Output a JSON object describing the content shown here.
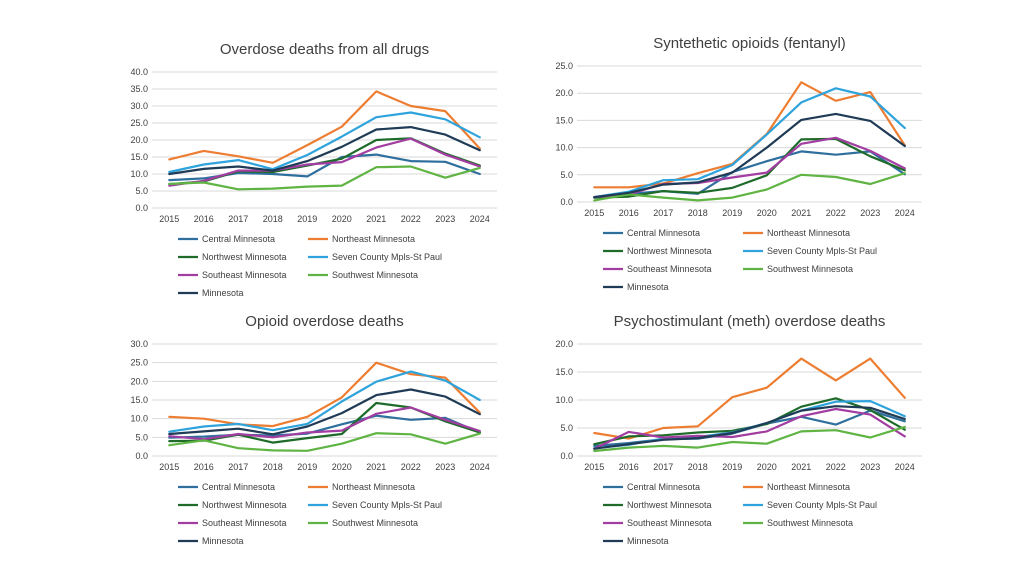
{
  "colors": {
    "Central Minnesota": "#2f6f9e",
    "Northeast Minnesota": "#ed7d31",
    "Northwest Minnesota": "#1e6b2a",
    "Seven County Mpls-St Paul": "#2ea3dc",
    "Southeast Minnesota": "#a23da1",
    "Southwest Minnesota": "#5fb443",
    "Minnesota": "#1f3b55"
  },
  "chart_data": [
    {
      "id": "all-drugs",
      "type": "line",
      "title": "Overdose deaths from all drugs",
      "categories": [
        "2015",
        "2016",
        "2017",
        "2018",
        "2019",
        "2020",
        "2021",
        "2022",
        "2023",
        "2024"
      ],
      "ylim": [
        0,
        40
      ],
      "yticks": [
        "0.0",
        "5.0",
        "10.0",
        "15.0",
        "20.0",
        "25.0",
        "30.0",
        "35.0",
        "40.0"
      ],
      "grid": true,
      "legend": "bottom",
      "series": [
        {
          "name": "Central Minnesota",
          "values": [
            8.2,
            8.7,
            10.3,
            10.0,
            9.3,
            15.0,
            15.7,
            13.8,
            13.6,
            10.0
          ]
        },
        {
          "name": "Northeast Minnesota",
          "values": [
            14.3,
            16.8,
            15.2,
            13.3,
            18.5,
            23.9,
            34.3,
            30.0,
            28.5,
            17.5
          ]
        },
        {
          "name": "Northwest Minnesota",
          "values": [
            7.0,
            7.8,
            10.8,
            10.6,
            12.5,
            14.5,
            20.0,
            20.5,
            16.0,
            12.5
          ]
        },
        {
          "name": "Seven County Mpls-St Paul",
          "values": [
            10.6,
            12.8,
            14.1,
            11.4,
            15.6,
            21.0,
            26.7,
            28.1,
            26.1,
            20.8
          ]
        },
        {
          "name": "Southeast Minnesota",
          "values": [
            6.6,
            8.0,
            11.0,
            11.0,
            12.8,
            13.5,
            17.8,
            20.4,
            15.7,
            12.2
          ]
        },
        {
          "name": "Southwest Minnesota",
          "values": [
            7.1,
            7.5,
            5.5,
            5.7,
            6.3,
            6.6,
            12.0,
            12.2,
            8.9,
            11.8
          ]
        },
        {
          "name": "Minnesota",
          "values": [
            10.0,
            11.5,
            12.2,
            11.0,
            13.8,
            18.0,
            23.1,
            23.8,
            21.6,
            17.0
          ]
        }
      ]
    },
    {
      "id": "fentanyl",
      "type": "line",
      "title": "Syntethetic opioids (fentanyl)",
      "categories": [
        "2015",
        "2016",
        "2017",
        "2018",
        "2019",
        "2020",
        "2021",
        "2022",
        "2023",
        "2024"
      ],
      "ylim": [
        0,
        25
      ],
      "yticks": [
        "0.0",
        "5.0",
        "10.0",
        "15.0",
        "20.0",
        "25.0"
      ],
      "grid": true,
      "legend": "bottom",
      "series": [
        {
          "name": "Central Minnesota",
          "values": [
            0.8,
            1.5,
            2.0,
            1.5,
            5.5,
            7.5,
            9.3,
            8.7,
            9.3,
            5.1
          ]
        },
        {
          "name": "Northeast Minnesota",
          "values": [
            2.7,
            2.7,
            3.4,
            5.3,
            7.0,
            12.5,
            22.0,
            18.6,
            20.2,
            10.4
          ]
        },
        {
          "name": "Northwest Minnesota",
          "values": [
            0.8,
            1.0,
            2.0,
            1.7,
            2.6,
            4.9,
            11.5,
            11.6,
            8.4,
            5.8
          ]
        },
        {
          "name": "Seven County Mpls-St Paul",
          "values": [
            0.9,
            1.9,
            4.0,
            4.2,
            6.8,
            12.4,
            18.3,
            20.9,
            19.4,
            13.6
          ]
        },
        {
          "name": "Southeast Minnesota",
          "values": [
            0.9,
            1.4,
            3.3,
            3.5,
            4.5,
            5.4,
            10.7,
            11.8,
            9.4,
            6.2
          ]
        },
        {
          "name": "Southwest Minnesota",
          "values": [
            0.3,
            1.4,
            0.8,
            0.3,
            0.8,
            2.3,
            5.0,
            4.6,
            3.3,
            5.3
          ]
        },
        {
          "name": "Minnesota",
          "values": [
            0.9,
            1.7,
            3.2,
            3.6,
            5.4,
            10.0,
            15.1,
            16.2,
            14.9,
            10.3
          ]
        }
      ]
    },
    {
      "id": "opioid",
      "type": "line",
      "title": "Opioid overdose deaths",
      "categories": [
        "2015",
        "2016",
        "2017",
        "2018",
        "2019",
        "2020",
        "2021",
        "2022",
        "2023",
        "2024"
      ],
      "ylim": [
        0,
        30
      ],
      "yticks": [
        "0.0",
        "5.0",
        "10.0",
        "15.0",
        "20.0",
        "25.0",
        "30.0"
      ],
      "grid": true,
      "legend": "bottom",
      "series": [
        {
          "name": "Central Minnesota",
          "values": [
            4.9,
            5.2,
            5.7,
            5.5,
            6.0,
            8.5,
            10.8,
            9.7,
            10.2,
            6.3
          ]
        },
        {
          "name": "Northeast Minnesota",
          "values": [
            10.5,
            10.0,
            8.5,
            8.0,
            10.5,
            15.7,
            25.0,
            21.9,
            21.0,
            11.6
          ]
        },
        {
          "name": "Northwest Minnesota",
          "values": [
            4.0,
            4.1,
            5.7,
            3.6,
            4.8,
            5.9,
            14.2,
            13.0,
            9.3,
            6.3
          ]
        },
        {
          "name": "Seven County Mpls-St Paul",
          "values": [
            6.5,
            7.9,
            8.6,
            6.9,
            8.6,
            14.6,
            19.9,
            22.6,
            20.2,
            15.0
          ]
        },
        {
          "name": "Southeast Minnesota",
          "values": [
            5.3,
            4.5,
            5.9,
            5.0,
            6.3,
            6.8,
            11.3,
            13.0,
            9.7,
            6.7
          ]
        },
        {
          "name": "Southwest Minnesota",
          "values": [
            2.9,
            4.2,
            2.1,
            1.5,
            1.4,
            3.3,
            6.1,
            5.8,
            3.3,
            6.0
          ]
        },
        {
          "name": "Minnesota",
          "values": [
            5.9,
            6.6,
            7.3,
            5.8,
            7.9,
            11.5,
            16.3,
            17.8,
            15.9,
            11.2
          ]
        }
      ]
    },
    {
      "id": "meth",
      "type": "line",
      "title": "Psychostimulant (meth) overdose deaths",
      "categories": [
        "2015",
        "2016",
        "2017",
        "2018",
        "2019",
        "2020",
        "2021",
        "2022",
        "2023",
        "2024"
      ],
      "ylim": [
        0,
        20
      ],
      "yticks": [
        "0.0",
        "5.0",
        "10.0",
        "15.0",
        "20.0"
      ],
      "grid": true,
      "legend": "bottom",
      "series": [
        {
          "name": "Central Minnesota",
          "values": [
            1.8,
            2.3,
            3.0,
            3.1,
            4.0,
            5.8,
            7.0,
            5.6,
            8.1,
            6.2
          ]
        },
        {
          "name": "Northeast Minnesota",
          "values": [
            4.1,
            3.1,
            5.0,
            5.3,
            10.5,
            12.2,
            17.4,
            13.5,
            17.4,
            10.4
          ]
        },
        {
          "name": "Northwest Minnesota",
          "values": [
            2.1,
            3.5,
            3.7,
            4.2,
            4.5,
            5.7,
            8.8,
            10.3,
            8.2,
            4.7
          ]
        },
        {
          "name": "Seven County Mpls-St Paul",
          "values": [
            1.4,
            2.0,
            3.1,
            3.4,
            4.2,
            5.9,
            8.1,
            9.7,
            9.8,
            7.1
          ]
        },
        {
          "name": "Southeast Minnesota",
          "values": [
            1.3,
            4.3,
            3.3,
            3.6,
            3.4,
            4.4,
            7.1,
            8.4,
            7.4,
            3.5
          ]
        },
        {
          "name": "Southwest Minnesota",
          "values": [
            0.9,
            1.5,
            1.8,
            1.5,
            2.5,
            2.2,
            4.4,
            4.6,
            3.3,
            5.2
          ]
        },
        {
          "name": "Minnesota",
          "values": [
            1.3,
            2.1,
            2.9,
            3.2,
            4.1,
            5.9,
            8.1,
            8.9,
            8.6,
            6.6
          ]
        }
      ]
    }
  ]
}
